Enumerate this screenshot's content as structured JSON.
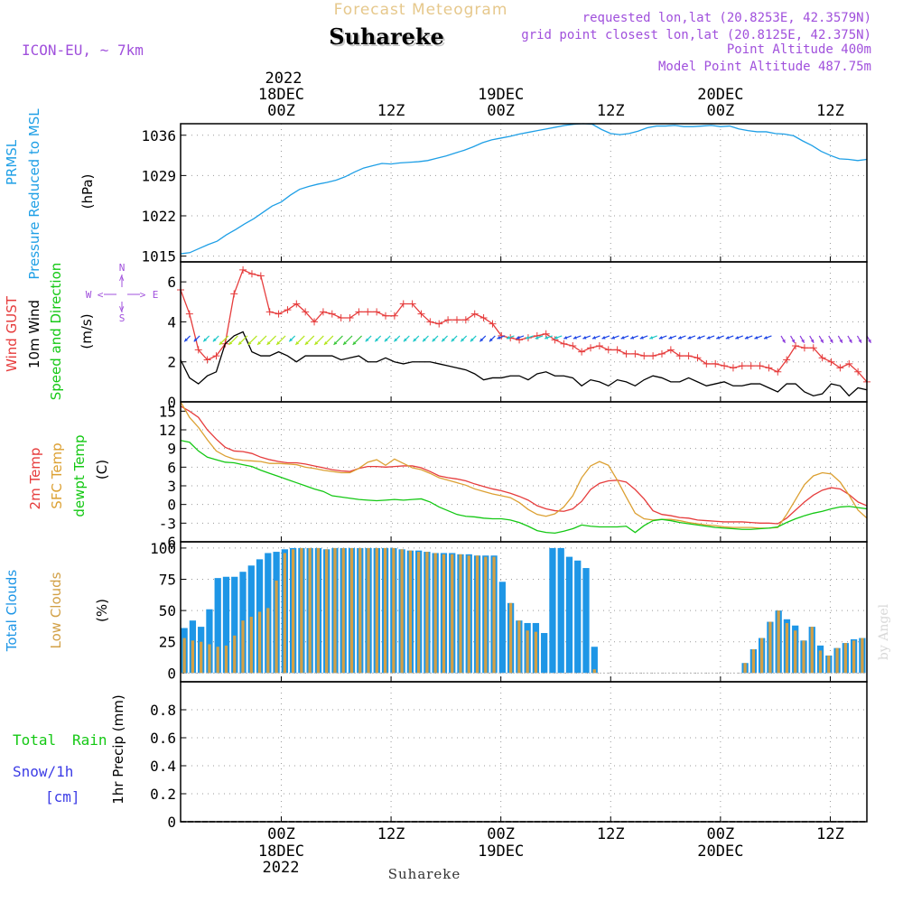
{
  "header": {
    "title": "Forecast Meteogram",
    "location": "Suhareke",
    "model": "ICON-EU, ~ 7km",
    "requested": "requested lon,lat (20.8253E, 42.3579N)",
    "grid_point": "grid point closest lon,lat (20.8125E, 42.375N)",
    "point_altitude": "Point Altitude 400m",
    "model_altitude": "Model Point Altitude 487.75m",
    "bottom_location": "Suhareke",
    "credit": "by Angel"
  },
  "time_axis": {
    "top_year": "2022",
    "bottom_year": "2022",
    "dates": [
      {
        "date": "18DEC",
        "hour": 12
      },
      {
        "date": "19DEC",
        "hour": 36
      },
      {
        "date": "20DEC",
        "hour": 60
      }
    ],
    "ticks": [
      {
        "label": "00Z",
        "hour": 12
      },
      {
        "label": "12Z",
        "hour": 24
      },
      {
        "label": "00Z",
        "hour": 36
      },
      {
        "label": "12Z",
        "hour": 48
      },
      {
        "label": "00Z",
        "hour": 60
      },
      {
        "label": "12Z",
        "hour": 72
      }
    ],
    "hour_range": [
      1,
      76
    ],
    "note": "hour 0 = 17DEC 12Z"
  },
  "compass": {
    "n": "N",
    "s": "S",
    "w": "W",
    "e": "E"
  },
  "colors": {
    "pressure": "#1e9fe6",
    "gust": "#e63c3c",
    "wind": "#000000",
    "temp": "#e63c3c",
    "sfc": "#dca032",
    "dew": "#14c814",
    "total_cloud": "#1e96e6",
    "low_cloud": "#d2a046",
    "title": "#e6c88c",
    "meta": "#a050dc",
    "rain": "#14c814",
    "snow": "#3c3ce6"
  },
  "chart_data": [
    {
      "type": "line",
      "name": "pressure",
      "ylabels": [
        "PRMSL",
        "Pressure Reduced to MSL"
      ],
      "unit": "(hPa)",
      "ylim": [
        1014,
        1038
      ],
      "yticks": [
        "1015",
        "1022",
        "1029",
        "1036"
      ],
      "series": [
        {
          "name": "PRMSL",
          "values": [
            1015.4,
            1015.6,
            1016.3,
            1017.0,
            1017.6,
            1018.7,
            1019.6,
            1020.6,
            1021.5,
            1022.6,
            1023.7,
            1024.4,
            1025.6,
            1026.6,
            1027.1,
            1027.5,
            1027.8,
            1028.2,
            1028.8,
            1029.6,
            1030.3,
            1030.7,
            1031.1,
            1031.0,
            1031.2,
            1031.3,
            1031.4,
            1031.6,
            1032.0,
            1032.4,
            1032.9,
            1033.4,
            1034.0,
            1034.7,
            1035.2,
            1035.5,
            1035.8,
            1036.2,
            1036.5,
            1036.8,
            1037.1,
            1037.4,
            1037.7,
            1037.9,
            1038.0,
            1037.9,
            1037.0,
            1036.3,
            1036.1,
            1036.3,
            1036.7,
            1037.3,
            1037.6,
            1037.6,
            1037.7,
            1037.5,
            1037.5,
            1037.6,
            1037.7,
            1037.5,
            1037.6,
            1037.1,
            1036.8,
            1036.6,
            1036.6,
            1036.3,
            1036.2,
            1035.9,
            1035.0,
            1034.2,
            1033.2,
            1032.5,
            1031.9,
            1031.8,
            1031.6,
            1031.8
          ]
        }
      ]
    },
    {
      "type": "line",
      "name": "wind",
      "ylabels": [
        "Wind GUST",
        "10m Wind",
        "Speed and Direction"
      ],
      "unit": "(m/s)",
      "ylim": [
        0,
        7
      ],
      "yticks": [
        "0",
        "2",
        "4",
        "6"
      ],
      "series": [
        {
          "name": "Wind GUST",
          "values": [
            5.6,
            4.4,
            2.6,
            2.1,
            2.3,
            2.9,
            5.4,
            6.6,
            6.4,
            6.3,
            4.5,
            4.4,
            4.6,
            4.9,
            4.5,
            4.0,
            4.5,
            4.4,
            4.2,
            4.2,
            4.5,
            4.5,
            4.5,
            4.3,
            4.3,
            4.9,
            4.9,
            4.4,
            4.0,
            3.9,
            4.1,
            4.1,
            4.1,
            4.4,
            4.2,
            3.9,
            3.3,
            3.2,
            3.1,
            3.2,
            3.3,
            3.4,
            3.1,
            2.9,
            2.8,
            2.5,
            2.7,
            2.8,
            2.6,
            2.6,
            2.4,
            2.4,
            2.3,
            2.3,
            2.4,
            2.6,
            2.3,
            2.3,
            2.2,
            1.9,
            1.9,
            1.8,
            1.7,
            1.8,
            1.8,
            1.8,
            1.7,
            1.5,
            2.1,
            2.8,
            2.7,
            2.7,
            2.2,
            2.0,
            1.7,
            1.9,
            1.5,
            1.0
          ]
        },
        {
          "name": "10m Wind",
          "values": [
            2.1,
            1.2,
            0.9,
            1.3,
            1.5,
            2.9,
            3.3,
            3.5,
            2.5,
            2.3,
            2.3,
            2.5,
            2.3,
            2.0,
            2.3,
            2.3,
            2.3,
            2.3,
            2.1,
            2.2,
            2.3,
            2.0,
            2.0,
            2.2,
            2.0,
            1.9,
            2.0,
            2.0,
            2.0,
            1.9,
            1.8,
            1.7,
            1.6,
            1.4,
            1.1,
            1.2,
            1.2,
            1.3,
            1.3,
            1.1,
            1.4,
            1.5,
            1.3,
            1.3,
            1.2,
            0.8,
            1.1,
            1.0,
            0.8,
            1.1,
            1.0,
            0.8,
            1.1,
            1.3,
            1.2,
            1.0,
            1.0,
            1.2,
            1.0,
            0.8,
            0.9,
            1.0,
            0.8,
            0.8,
            0.9,
            0.9,
            0.7,
            0.5,
            0.9,
            0.9,
            0.5,
            0.3,
            0.4,
            0.9,
            0.8,
            0.3,
            0.7,
            0.6
          ]
        }
      ]
    },
    {
      "type": "line",
      "name": "temperature",
      "ylabels": [
        "2m Temp",
        "SFC Temp",
        "dewpt Temp"
      ],
      "unit": "(C)",
      "ylim": [
        -6,
        16.5
      ],
      "yticks": [
        "-6",
        "-3",
        "0",
        "3",
        "6",
        "9",
        "12",
        "15"
      ],
      "series": [
        {
          "name": "2m Temp",
          "values": [
            15.8,
            15.0,
            14.0,
            12.0,
            10.5,
            9.2,
            8.6,
            8.5,
            8.2,
            7.6,
            7.2,
            6.9,
            6.7,
            6.7,
            6.5,
            6.2,
            5.9,
            5.6,
            5.4,
            5.3,
            5.8,
            6.1,
            6.1,
            6.0,
            6.1,
            6.2,
            6.2,
            5.9,
            5.3,
            4.6,
            4.3,
            4.1,
            3.8,
            3.3,
            2.9,
            2.5,
            2.2,
            1.8,
            1.3,
            0.7,
            -0.2,
            -0.7,
            -1.0,
            -1.1,
            -0.7,
            0.5,
            2.4,
            3.4,
            3.8,
            3.9,
            3.6,
            2.4,
            0.9,
            -1.0,
            -1.6,
            -1.8,
            -2.1,
            -2.2,
            -2.5,
            -2.6,
            -2.7,
            -2.8,
            -2.8,
            -2.8,
            -2.9,
            -3.0,
            -3.0,
            -3.1,
            -2.2,
            -0.9,
            0.4,
            1.5,
            2.3,
            2.7,
            2.5,
            1.6,
            0.4,
            -0.2
          ]
        },
        {
          "name": "SFC Temp",
          "values": [
            16.5,
            14.0,
            12.4,
            10.4,
            8.6,
            7.8,
            7.3,
            7.1,
            7.0,
            6.9,
            6.6,
            6.6,
            6.5,
            6.4,
            6.0,
            5.8,
            5.5,
            5.3,
            5.1,
            5.1,
            5.8,
            6.8,
            7.2,
            6.3,
            7.3,
            6.6,
            5.9,
            5.6,
            5.0,
            4.3,
            3.9,
            3.5,
            3.1,
            2.5,
            2.1,
            1.7,
            1.4,
            1.1,
            0.3,
            -0.8,
            -1.6,
            -1.9,
            -1.5,
            -0.4,
            1.4,
            4.3,
            6.2,
            6.9,
            6.3,
            3.9,
            1.2,
            -1.4,
            -2.3,
            -2.5,
            -2.4,
            -2.4,
            -2.6,
            -2.9,
            -3.1,
            -3.3,
            -3.4,
            -3.6,
            -3.7,
            -3.7,
            -3.7,
            -3.8,
            -3.8,
            -3.7,
            -1.6,
            0.8,
            3.2,
            4.6,
            5.1,
            4.9,
            3.6,
            1.5,
            -0.9,
            -2.2
          ]
        },
        {
          "name": "dewpt Temp",
          "values": [
            10.3,
            10.0,
            8.6,
            7.6,
            7.2,
            6.8,
            6.7,
            6.4,
            6.1,
            5.5,
            5.0,
            4.5,
            4.0,
            3.5,
            3.0,
            2.5,
            2.1,
            1.4,
            1.2,
            1.0,
            0.8,
            0.7,
            0.6,
            0.7,
            0.8,
            0.7,
            0.8,
            0.9,
            0.4,
            -0.4,
            -1.0,
            -1.6,
            -1.9,
            -2.0,
            -2.2,
            -2.3,
            -2.3,
            -2.5,
            -2.9,
            -3.5,
            -4.2,
            -4.5,
            -4.6,
            -4.3,
            -3.9,
            -3.3,
            -3.5,
            -3.6,
            -3.6,
            -3.6,
            -3.5,
            -4.5,
            -3.4,
            -2.6,
            -2.4,
            -2.6,
            -2.9,
            -3.1,
            -3.3,
            -3.5,
            -3.7,
            -3.8,
            -3.9,
            -4.0,
            -4.0,
            -3.9,
            -3.8,
            -3.6,
            -2.9,
            -2.3,
            -1.8,
            -1.4,
            -1.1,
            -0.7,
            -0.4,
            -0.3,
            -0.5,
            -0.7
          ]
        }
      ]
    },
    {
      "type": "bar",
      "name": "clouds",
      "ylabels": [
        "Total Clouds",
        "Low Clouds"
      ],
      "unit": "(%)",
      "ylim": [
        -7,
        105
      ],
      "yticks": [
        "0",
        "25",
        "50",
        "75",
        "100"
      ],
      "series": [
        {
          "name": "Total Clouds",
          "values": [
            36,
            42,
            37,
            51,
            76,
            77,
            77,
            81,
            86,
            91,
            96,
            97,
            99,
            100,
            100,
            100,
            100,
            99,
            100,
            100,
            100,
            100,
            100,
            100,
            100,
            100,
            99,
            98,
            98,
            97,
            96,
            96,
            96,
            95,
            95,
            94,
            94,
            94,
            73,
            56,
            42,
            40,
            40,
            32,
            100,
            100,
            93,
            90,
            84,
            21,
            0,
            0,
            0,
            0,
            0,
            0,
            0,
            0,
            0,
            0,
            0,
            0,
            0,
            0,
            0,
            0,
            0,
            8,
            19,
            28,
            41,
            50,
            43,
            38,
            26,
            37,
            22,
            14,
            20,
            24,
            27,
            28
          ]
        },
        {
          "name": "Low Clouds",
          "values": [
            28,
            26,
            25,
            23,
            21,
            22,
            30,
            42,
            45,
            49,
            52,
            74,
            96,
            99,
            100,
            100,
            100,
            99,
            100,
            100,
            100,
            100,
            100,
            100,
            100,
            100,
            99,
            98,
            97,
            97,
            96,
            95,
            95,
            95,
            94,
            94,
            93,
            93,
            0,
            56,
            42,
            34,
            33,
            0,
            0,
            0,
            0,
            0,
            0,
            3,
            0,
            0,
            0,
            0,
            0,
            0,
            0,
            0,
            0,
            0,
            0,
            0,
            0,
            0,
            0,
            0,
            0,
            8,
            19,
            28,
            41,
            50,
            40,
            34,
            26,
            37,
            18,
            14,
            20,
            24,
            26,
            28
          ]
        }
      ]
    },
    {
      "type": "bar",
      "name": "precipitation",
      "ylabels": [
        "1hr Precip (mm)"
      ],
      "legend": [
        "Total",
        "Rain",
        "Snow/1h",
        "[cm]"
      ],
      "ylim": [
        0,
        1.0
      ],
      "yticks": [
        "0",
        "0.2",
        "0.4",
        "0.6",
        "0.8"
      ],
      "series": [
        {
          "name": "Total Rain",
          "values": []
        },
        {
          "name": "Snow/1h",
          "values": []
        }
      ]
    }
  ]
}
